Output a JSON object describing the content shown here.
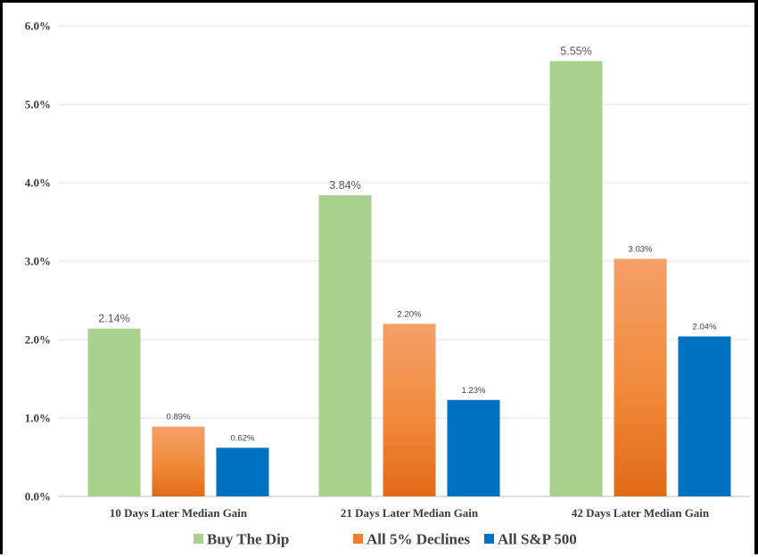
{
  "chart_data": {
    "type": "bar",
    "title": "",
    "xlabel": "",
    "ylabel": "",
    "categories": [
      "10 Days Later Median Gain",
      "21 Days Later Median Gain",
      "42 Days Later Median Gain"
    ],
    "series": [
      {
        "name": "Buy The Dip",
        "values": [
          2.14,
          3.84,
          5.55
        ],
        "labels": [
          "2.14%",
          "3.84%",
          "5.55%"
        ],
        "color": "#a9d18e"
      },
      {
        "name": "All 5% Declines",
        "values": [
          0.89,
          2.2,
          3.03
        ],
        "labels": [
          "0.89%",
          "2.20%",
          "3.03%"
        ],
        "color": "#ed7d31"
      },
      {
        "name": "All S&P 500",
        "values": [
          0.62,
          1.23,
          2.04
        ],
        "labels": [
          "0.62%",
          "1.23%",
          "2.04%"
        ],
        "color": "#0070c0"
      }
    ],
    "ylim": [
      0,
      6
    ],
    "yticks": [
      "0.0%",
      "1.0%",
      "2.0%",
      "3.0%",
      "4.0%",
      "5.0%",
      "6.0%"
    ],
    "grid": true,
    "legend_position": "bottom"
  }
}
